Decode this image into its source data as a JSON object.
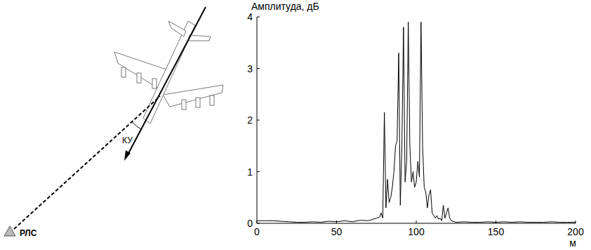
{
  "chart_data": {
    "type": "line",
    "y_label": "Амплитуда, дБ",
    "x_label": "м",
    "x": [
      0,
      5,
      10,
      15,
      20,
      25,
      30,
      35,
      40,
      45,
      50,
      55,
      60,
      65,
      70,
      75,
      77,
      78,
      79,
      80,
      81,
      82,
      83,
      84,
      85,
      86,
      87,
      88,
      89,
      90,
      91,
      92,
      93,
      94,
      95,
      96,
      97,
      98,
      99,
      100,
      101,
      102,
      103,
      104,
      105,
      106,
      107,
      108,
      109,
      110,
      111,
      112,
      113,
      114,
      115,
      116,
      117,
      118,
      119,
      120,
      121,
      122,
      125,
      130,
      135,
      140,
      145,
      150,
      155,
      160,
      165,
      170,
      175,
      180,
      185,
      190,
      195,
      200
    ],
    "series": [
      {
        "name": null,
        "color": "#000000",
        "values": [
          0.05,
          0.05,
          0.05,
          0.04,
          0.03,
          0.02,
          0.02,
          0.03,
          0.02,
          0.04,
          0.03,
          0.05,
          0.03,
          0.06,
          0.05,
          0.1,
          0.12,
          0.2,
          0.1,
          2.15,
          0.3,
          0.85,
          0.4,
          0.5,
          0.7,
          1.0,
          1.5,
          1.6,
          3.3,
          0.35,
          1.5,
          3.8,
          0.8,
          1.2,
          3.9,
          1.5,
          0.8,
          1.0,
          0.7,
          0.8,
          1.2,
          0.9,
          3.9,
          1.5,
          0.7,
          0.6,
          0.3,
          0.55,
          0.65,
          0.2,
          0.15,
          0.1,
          0.15,
          0.08,
          0.1,
          0.05,
          0.35,
          0.1,
          0.2,
          0.3,
          0.1,
          0.05,
          0.02,
          0.03,
          0.02,
          0.02,
          0.03,
          0.02,
          0.03,
          0.02,
          0.03,
          0.02,
          0.02,
          0.02,
          0.03,
          0.02,
          0.02,
          0.02
        ]
      }
    ],
    "xlim": [
      0,
      200
    ],
    "ylim": [
      0,
      4
    ],
    "xticks": [
      0,
      50,
      100,
      150,
      200
    ],
    "yticks": [
      0,
      1,
      2,
      3,
      4
    ],
    "grid": false
  },
  "diagram": {
    "radar_label": "РЛС",
    "angle_label": "КУ"
  }
}
